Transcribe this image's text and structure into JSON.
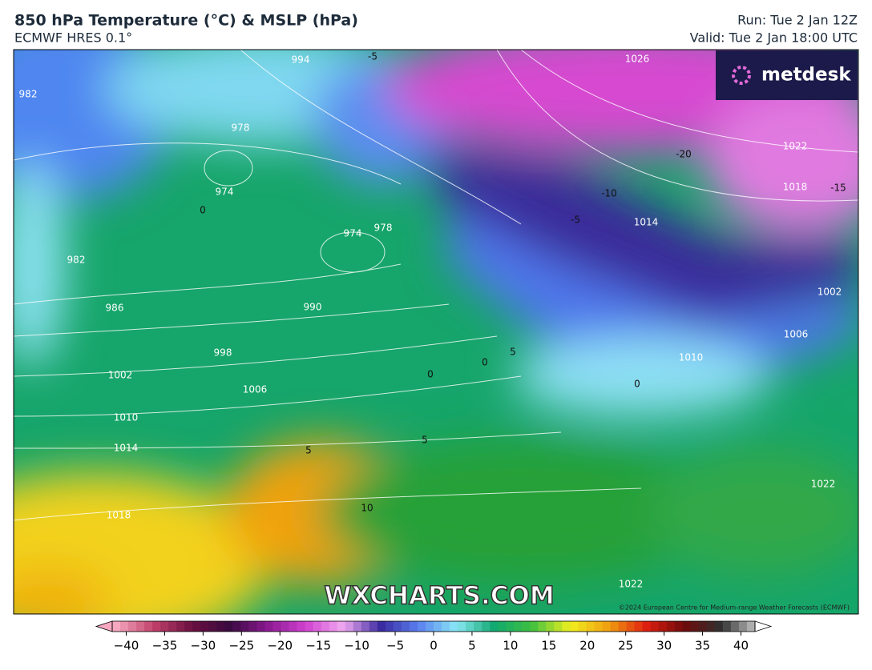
{
  "header": {
    "title": "850 hPa Temperature (°C) & MSLP (hPa)",
    "subtitle": "ECMWF HRES 0.1°",
    "run": "Run: Tue 2 Jan 12Z",
    "valid": "Valid: Tue 2 Jan 18:00 UTC"
  },
  "logo": "metdesk",
  "watermark": "WXCHARTS.COM",
  "copyright": "©2024 European Centre for Medium-range Weather Forecasts (ECMWF)",
  "isobar_labels": [
    "994",
    "982",
    "978",
    "974",
    "974",
    "978",
    "982",
    "986",
    "990",
    "998",
    "1002",
    "1006",
    "1010",
    "1014",
    "1018",
    "1022",
    "1026",
    "1022",
    "1018",
    "1014",
    "1010",
    "1006",
    "1002",
    "1022"
  ],
  "temperature_labels": [
    "-5",
    "-20",
    "-15",
    "0",
    "-10",
    "-5",
    "0",
    "5",
    "0",
    "0",
    "5",
    "10",
    "5"
  ],
  "colorbar": {
    "ticks": [
      "−40",
      "−35",
      "−30",
      "−25",
      "−20",
      "−15",
      "−10",
      "−5",
      "0",
      "5",
      "10",
      "15",
      "20",
      "25",
      "30",
      "35",
      "40"
    ]
  }
}
